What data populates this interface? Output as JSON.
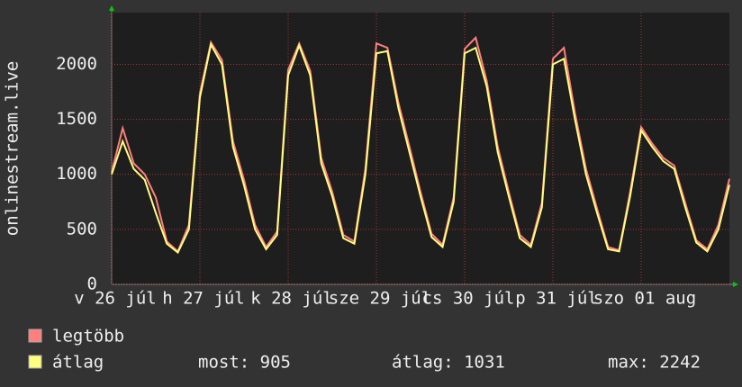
{
  "chart_data": {
    "type": "line",
    "ylabel": "onlinestream.live",
    "x": [
      0,
      3,
      6,
      9,
      12,
      15,
      18,
      21,
      24,
      27,
      30,
      33,
      36,
      39,
      42,
      45,
      48,
      51,
      54,
      57,
      60,
      63,
      66,
      69,
      72,
      75,
      78,
      81,
      84,
      87,
      90,
      93,
      96,
      99,
      102,
      105,
      108,
      111,
      114,
      117,
      120,
      123,
      126,
      129,
      132,
      135,
      138,
      141,
      144,
      147,
      150,
      153,
      156,
      159,
      162,
      165,
      168
    ],
    "xlim": [
      0,
      168
    ],
    "xticks": [
      {
        "value": 0,
        "label": "v 26 júl"
      },
      {
        "value": 24,
        "label": "h 27 júl"
      },
      {
        "value": 48,
        "label": "k 28 júl"
      },
      {
        "value": 72,
        "label": "sze 29 júl"
      },
      {
        "value": 96,
        "label": "cs 30 júl"
      },
      {
        "value": 120,
        "label": "p 31 júl"
      },
      {
        "value": 144,
        "label": "szo 01 aug"
      }
    ],
    "ylim": [
      0,
      2470
    ],
    "yticks": [
      0,
      500,
      1000,
      1500,
      2000
    ],
    "grid": true,
    "series": [
      {
        "name": "legtöbb",
        "color": "#ff7f7f",
        "values": [
          1020,
          1420,
          1100,
          1000,
          790,
          390,
          300,
          540,
          1740,
          2200,
          2040,
          1300,
          950,
          540,
          340,
          480,
          1950,
          2190,
          1940,
          1150,
          840,
          450,
          390,
          1050,
          2190,
          2150,
          1650,
          1250,
          840,
          460,
          360,
          790,
          2140,
          2242,
          1850,
          1250,
          840,
          450,
          360,
          740,
          2050,
          2150,
          1560,
          1050,
          690,
          340,
          310,
          840,
          1430,
          1280,
          1150,
          1080,
          740,
          400,
          320,
          540,
          960
        ]
      },
      {
        "name": "átlag",
        "color": "#ffff7f",
        "values": [
          1000,
          1300,
          1050,
          950,
          650,
          370,
          290,
          500,
          1700,
          2180,
          2000,
          1250,
          900,
          500,
          320,
          450,
          1900,
          2170,
          1900,
          1100,
          800,
          420,
          370,
          1000,
          2100,
          2120,
          1600,
          1200,
          800,
          430,
          340,
          750,
          2100,
          2150,
          1800,
          1200,
          800,
          420,
          340,
          700,
          2000,
          2050,
          1500,
          1000,
          650,
          320,
          300,
          800,
          1400,
          1250,
          1120,
          1050,
          700,
          380,
          300,
          500,
          905
        ]
      }
    ],
    "stats": [
      "most: 905",
      "átlag: 1031",
      "max: 2242"
    ]
  }
}
